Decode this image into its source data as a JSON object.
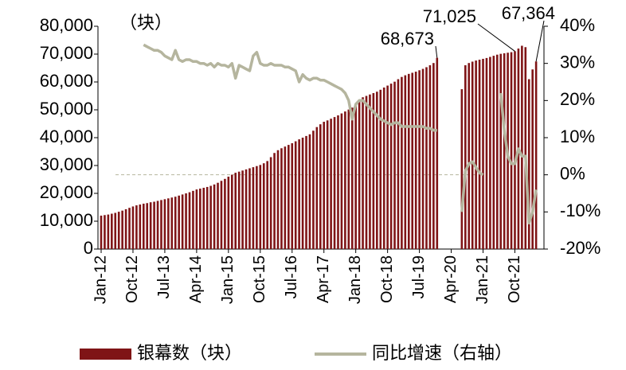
{
  "chart_data": {
    "type": "bar-line",
    "unit_label": "（块）",
    "categories": [
      "Jan-12",
      null,
      null,
      null,
      null,
      null,
      null,
      null,
      null,
      "Oct-12",
      null,
      null,
      null,
      null,
      null,
      null,
      null,
      null,
      "Jul-13",
      null,
      null,
      null,
      null,
      null,
      null,
      null,
      null,
      "Apr-14",
      null,
      null,
      null,
      null,
      null,
      null,
      null,
      null,
      "Jan-15",
      null,
      null,
      null,
      null,
      null,
      null,
      null,
      null,
      "Oct-15",
      null,
      null,
      null,
      null,
      null,
      null,
      null,
      null,
      "Jul-16",
      null,
      null,
      null,
      null,
      null,
      null,
      null,
      null,
      "Apr-17",
      null,
      null,
      null,
      null,
      null,
      null,
      null,
      null,
      "Jan-18",
      null,
      null,
      null,
      null,
      null,
      null,
      null,
      null,
      "Oct-18",
      null,
      null,
      null,
      null,
      null,
      null,
      null,
      null,
      "Jul-19",
      null,
      null,
      null,
      null,
      null,
      null,
      null,
      null,
      "Apr-20",
      null,
      null,
      null,
      null,
      null,
      null,
      null,
      null,
      "Jan-21",
      null,
      null,
      null,
      null,
      null,
      null,
      null,
      null,
      "Oct-21",
      null,
      null,
      null,
      null,
      null,
      null
    ],
    "series": [
      {
        "name": "银幕数（块）",
        "type": "bar",
        "color": "#7f1416",
        "values": [
          12000,
          12200,
          12400,
          12700,
          13000,
          13400,
          13800,
          14300,
          14800,
          15300,
          15700,
          16000,
          16300,
          16500,
          16800,
          17000,
          17300,
          17600,
          17900,
          18200,
          18500,
          18800,
          19200,
          19600,
          20000,
          20400,
          20900,
          21400,
          21700,
          22000,
          22300,
          22700,
          23200,
          23800,
          24500,
          25200,
          26000,
          26700,
          27400,
          27800,
          28200,
          28600,
          29000,
          29400,
          29800,
          30200,
          30800,
          31600,
          33000,
          34500,
          35500,
          36200,
          36800,
          37400,
          38000,
          38700,
          39400,
          40000,
          40600,
          41200,
          42500,
          43800,
          44800,
          45700,
          46200,
          46800,
          47400,
          48000,
          48700,
          49400,
          50100,
          50800,
          52000,
          53500,
          54500,
          55000,
          55500,
          56000,
          56500,
          57200,
          58000,
          58700,
          59400,
          60100,
          61000,
          61800,
          62400,
          62900,
          63300,
          63700,
          64200,
          64700,
          65300,
          66000,
          66800,
          68673,
          null,
          null,
          null,
          null,
          null,
          null,
          57400,
          66000,
          66800,
          67300,
          67700,
          68000,
          68300,
          68600,
          69000,
          69400,
          69800,
          70100,
          70300,
          70500,
          70700,
          71025,
          72000,
          73000,
          72500,
          61000,
          64500,
          67364
        ],
        "value_labels": [
          null,
          null,
          null,
          null,
          null,
          null,
          null,
          null,
          null,
          null,
          null,
          null,
          null,
          null,
          null,
          null,
          null,
          null,
          null,
          null,
          null,
          null,
          null,
          null,
          null,
          null,
          null,
          null,
          null,
          null,
          null,
          null,
          null,
          null,
          null,
          null,
          null,
          null,
          null,
          null,
          null,
          null,
          null,
          null,
          null,
          null,
          null,
          null,
          null,
          null,
          null,
          null,
          null,
          null,
          null,
          null,
          null,
          null,
          null,
          null,
          null,
          null,
          null,
          null,
          null,
          null,
          null,
          null,
          null,
          null,
          null,
          null,
          null,
          null,
          null,
          null,
          null,
          null,
          null,
          null,
          null,
          null,
          null,
          null,
          null,
          null,
          null,
          null,
          null,
          null,
          null,
          null,
          null,
          null,
          null,
          "68,673",
          null,
          null,
          null,
          null,
          null,
          null,
          null,
          null,
          null,
          null,
          null,
          null,
          null,
          null,
          null,
          null,
          null,
          null,
          null,
          null,
          null,
          "71,025",
          null,
          null,
          null,
          null,
          null,
          "67,364"
        ]
      },
      {
        "name": "同比增速（右轴）",
        "type": "line",
        "axis": "y2",
        "color": "#b5b59e",
        "values": [
          null,
          null,
          null,
          null,
          null,
          null,
          null,
          null,
          null,
          null,
          null,
          null,
          35,
          34.5,
          34,
          33.5,
          33.5,
          33,
          32,
          31.5,
          31,
          33.5,
          31,
          30.5,
          31,
          31,
          30.5,
          30.5,
          30,
          30,
          29.5,
          30,
          29,
          30,
          29.5,
          29.5,
          29,
          30,
          26,
          29.5,
          29,
          28.5,
          28,
          32,
          33,
          30,
          29.5,
          29.5,
          30,
          29.5,
          29.5,
          29.5,
          29,
          29,
          28.5,
          28,
          25,
          27,
          26,
          25.5,
          26,
          26,
          25.5,
          25.5,
          25,
          24.5,
          24,
          23.5,
          23,
          22,
          20,
          15,
          19,
          20,
          20,
          19,
          18,
          17,
          16,
          15,
          14.5,
          14,
          13.5,
          14,
          14,
          13,
          13,
          13,
          13,
          13,
          13,
          13,
          12.5,
          12.5,
          12,
          12,
          null,
          null,
          null,
          null,
          null,
          null,
          -10,
          1,
          3,
          3.5,
          2,
          0.5,
          0,
          null,
          null,
          null,
          null,
          22,
          12,
          5,
          3,
          3,
          7,
          5,
          5,
          -13,
          -10,
          -4
        ]
      }
    ],
    "ylim": [
      0,
      80000
    ],
    "yticks": [
      0,
      {
        "value": 10000,
        "label": "10,000"
      },
      {
        "value": 20000,
        "label": "20,000"
      },
      {
        "value": 30000,
        "label": "30,000"
      },
      {
        "value": 40000,
        "label": "40,000"
      },
      {
        "value": 50000,
        "label": "50,000"
      },
      {
        "value": 60000,
        "label": "60,000"
      },
      {
        "value": 70000,
        "label": "70,000"
      },
      {
        "value": 80000,
        "label": "80,000"
      }
    ],
    "y2lim": [
      -20,
      40
    ],
    "y2ticks": [
      {
        "value": -20,
        "label": "-20%"
      },
      {
        "value": -10,
        "label": "-10%"
      },
      {
        "value": 0,
        "label": "0%"
      },
      {
        "value": 10,
        "label": "10%"
      },
      {
        "value": 20,
        "label": "20%"
      },
      {
        "value": 30,
        "label": "30%"
      },
      {
        "value": 40,
        "label": "40%"
      }
    ],
    "legend": "bottom"
  }
}
